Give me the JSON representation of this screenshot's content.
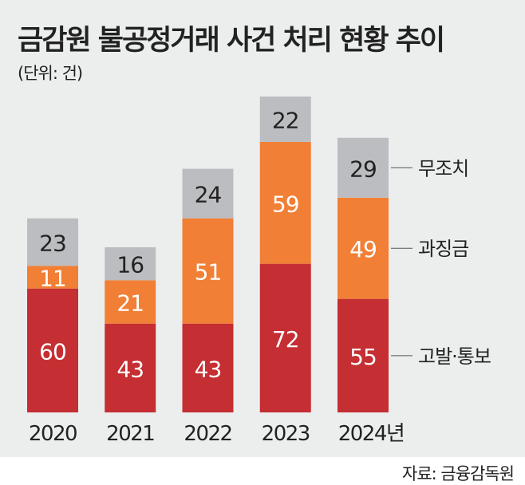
{
  "chart_data": {
    "type": "bar",
    "stacked": true,
    "title": "금감원 불공정거래 사건 처리 현황 추이",
    "subtitle": "(단위: 건)",
    "categories": [
      "2020",
      "2021",
      "2022",
      "2023",
      "2024년"
    ],
    "series": [
      {
        "name": "고발·통보",
        "color": "#c52e32",
        "label_color": "#ffffff",
        "values": [
          60,
          43,
          43,
          72,
          55
        ]
      },
      {
        "name": "과징금",
        "color": "#f17f35",
        "label_color": "#ffffff",
        "values": [
          11,
          21,
          51,
          59,
          49
        ]
      },
      {
        "name": "무조치",
        "color": "#bcbdc0",
        "label_color": "#222222",
        "values": [
          23,
          16,
          24,
          22,
          29
        ]
      }
    ],
    "legend_placement": "right",
    "ylim": [
      0,
      153
    ],
    "source": "자료: 금융감독원"
  }
}
